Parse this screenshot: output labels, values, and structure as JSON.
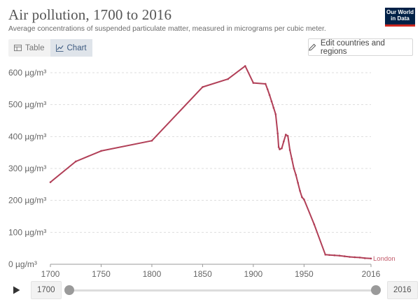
{
  "header": {
    "title": "Air pollution, 1700 to 2016",
    "subtitle": "Average concentrations of suspended particulate matter, measured in micrograms per cubic meter.",
    "logo_line1": "Our World",
    "logo_line2": "in Data"
  },
  "tabs": [
    {
      "label": "Table",
      "icon": "table-icon",
      "active": false
    },
    {
      "label": "Chart",
      "icon": "line-chart-icon",
      "active": true
    }
  ],
  "edit_button": {
    "label": "Edit countries and regions",
    "icon": "pencil-icon"
  },
  "timeline": {
    "start_year": "1700",
    "end_year": "2016",
    "play_icon": "play-icon"
  },
  "colors": {
    "series": "#b13f57",
    "grid": "#dddddd",
    "axis": "#999999"
  },
  "chart_data": {
    "type": "line",
    "title": "Air pollution, 1700 to 2016",
    "subtitle": "Average concentrations of suspended particulate matter, measured in micrograms per cubic meter.",
    "xlabel": "",
    "ylabel": "",
    "x_ticks": [
      "1700",
      "1750",
      "1800",
      "1850",
      "1900",
      "1950",
      "2016"
    ],
    "y_ticks": [
      "0 µg/m³",
      "100 µg/m³",
      "200 µg/m³",
      "300 µg/m³",
      "400 µg/m³",
      "500 µg/m³",
      "600 µg/m³"
    ],
    "xlim": [
      1700,
      2016
    ],
    "ylim": [
      0,
      600
    ],
    "grid": "horizontal",
    "legend": "end-of-line",
    "series": [
      {
        "name": "London",
        "x": [
          1700,
          1725,
          1750,
          1800,
          1850,
          1875,
          1892,
          1900,
          1912,
          1914,
          1916,
          1918,
          1920,
          1922,
          1924,
          1925,
          1926,
          1928,
          1930,
          1932,
          1934,
          1936,
          1938,
          1940,
          1942,
          1944,
          1946,
          1948,
          1950,
          1960,
          1971,
          1975,
          1980,
          1985,
          1990,
          1995,
          2000,
          2005,
          2010,
          2016
        ],
        "values": [
          257,
          322,
          355,
          387,
          555,
          580,
          621,
          568,
          565,
          548,
          530,
          510,
          490,
          470,
          410,
          367,
          360,
          363,
          385,
          406,
          402,
          358,
          330,
          300,
          280,
          255,
          230,
          210,
          203,
          125,
          30,
          29,
          28,
          27,
          25,
          23,
          22,
          21,
          19,
          18
        ]
      }
    ]
  }
}
